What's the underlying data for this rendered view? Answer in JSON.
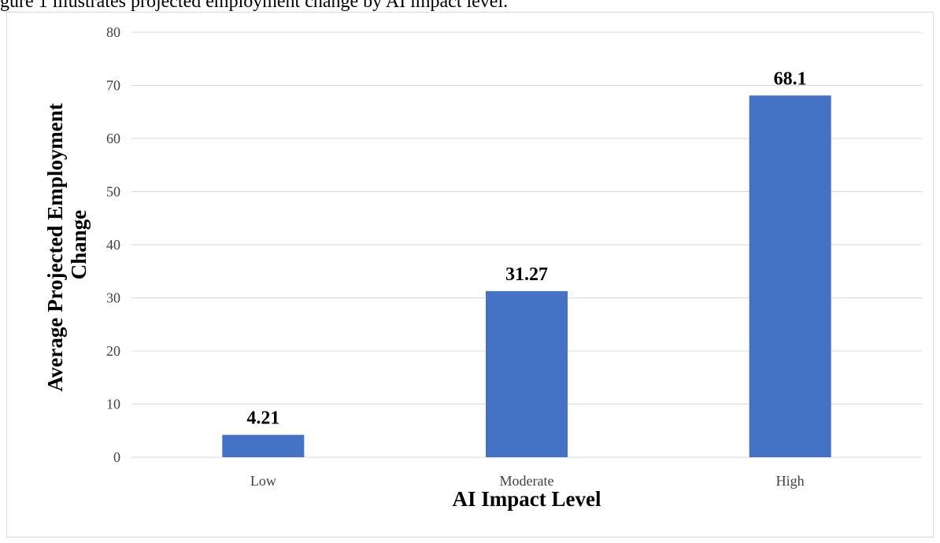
{
  "caption": "gure 1 illustrates projected employment change by AI impact level.",
  "chart_data": {
    "type": "bar",
    "categories": [
      "Low",
      "Moderate",
      "High"
    ],
    "values": [
      4.21,
      31.27,
      68.1
    ],
    "data_labels": [
      "4.21",
      "31.27",
      "68.1"
    ],
    "title": "",
    "xlabel": "AI Impact Level",
    "ylabel_lines": [
      "Average Projected Employment",
      "Change"
    ],
    "ylim": [
      0,
      80
    ],
    "yticks": [
      0,
      10,
      20,
      30,
      40,
      50,
      60,
      70,
      80
    ],
    "grid": true,
    "legend": "none",
    "bar_color": "#4472C4",
    "grid_color": "#d9d9d9"
  }
}
